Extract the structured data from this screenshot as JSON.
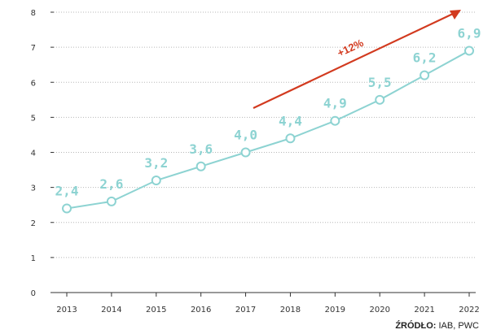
{
  "chart_data": {
    "type": "line",
    "categories": [
      "2013",
      "2014",
      "2015",
      "2016",
      "2017",
      "2018",
      "2019",
      "2020",
      "2021",
      "2022"
    ],
    "values": [
      2.4,
      2.6,
      3.2,
      3.6,
      4.0,
      4.4,
      4.9,
      5.5,
      6.2,
      6.9
    ],
    "value_labels": [
      "2,4",
      "2,6",
      "3,2",
      "3,6",
      "4,0",
      "4,4",
      "4,9",
      "5,5",
      "6,2",
      "6,9"
    ],
    "ylim": [
      0,
      8
    ],
    "yticks": [
      "0",
      "1",
      "2",
      "3",
      "4",
      "5",
      "6",
      "7",
      "8"
    ],
    "grid": "horizontal dotted",
    "trend_annotation": "+12%",
    "colors": {
      "line": "#8dd3d2",
      "trend": "#d23a1f",
      "axis": "#333333"
    }
  },
  "source": {
    "label": "ŹRÓDŁO:",
    "text": "IAB, PWC"
  }
}
